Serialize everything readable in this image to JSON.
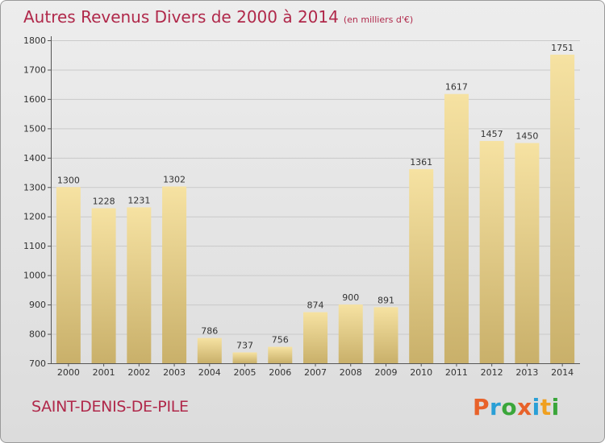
{
  "header": {
    "title": "Autres Revenus Divers de 2000 à 2014",
    "subtitle": "(en milliers d'€)"
  },
  "footer": {
    "location": "SAINT-DENIS-DE-PILE",
    "brand": "Proxiti"
  },
  "colors": {
    "title": "#b0284a",
    "bar_light": "#f6e2a2",
    "bar_dark": "#c9b06a",
    "background": "#e4e4e4"
  },
  "chart_data": {
    "type": "bar",
    "categories": [
      "2000",
      "2001",
      "2002",
      "2003",
      "2004",
      "2005",
      "2006",
      "2007",
      "2008",
      "2009",
      "2010",
      "2011",
      "2012",
      "2013",
      "2014"
    ],
    "values": [
      1300,
      1228,
      1231,
      1302,
      786,
      737,
      756,
      874,
      900,
      891,
      1361,
      1617,
      1457,
      1450,
      1751
    ],
    "ylim": [
      700,
      1800
    ],
    "yticks": [
      700,
      800,
      900,
      1000,
      1100,
      1200,
      1300,
      1400,
      1500,
      1600,
      1700,
      1800
    ],
    "grid": true,
    "data_labels": true
  }
}
